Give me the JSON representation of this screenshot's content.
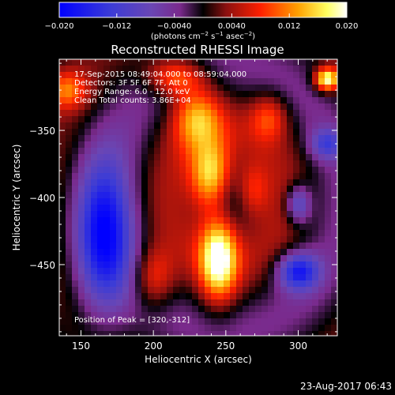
{
  "chart_data": {
    "type": "heatmap",
    "title": "Reconstructed RHESSI Image",
    "xlabel": "Heliocentric X (arcsec)",
    "ylabel": "Heliocentric Y (arcsec)",
    "xlim": [
      135,
      327
    ],
    "ylim": [
      -503,
      -297
    ],
    "x_ticks": [
      150,
      200,
      250,
      300
    ],
    "y_ticks": [
      -350,
      -400,
      -450
    ],
    "x_tick_labels": [
      "150",
      "200",
      "250",
      "300"
    ],
    "y_tick_labels": [
      "−350",
      "−400",
      "−450"
    ],
    "colorbar": {
      "range": [
        -0.02,
        0.02
      ],
      "ticks": [
        -0.02,
        -0.012,
        -0.004,
        0.004,
        0.012,
        0.02
      ],
      "tick_labels": [
        "−0.020",
        "−0.012",
        "−0.0040",
        "0.0040",
        "0.012",
        "0.020"
      ],
      "unit_label_parts": {
        "prefix": "(photons cm",
        "sup1": "−2",
        "mid1": " s",
        "sup2": "−1",
        "mid2": " asec",
        "sup3": "−2",
        "suffix": ")"
      },
      "colors": [
        "#0000ff",
        "#3c3cd6",
        "#6a46b4",
        "#7a2a8c",
        "#000000",
        "#8a1010",
        "#ff2000",
        "#ffa000",
        "#ffff60",
        "#ffffff"
      ]
    },
    "annotations": [
      "17-Sep-2015 08:49:04.000 to 08:59:04.000",
      "Detectors: 3F 5F 6F 7F, Att 0",
      "Energy Range: 6.0 - 12.0 keV",
      "Clean    Total counts: 3.86E+04"
    ],
    "peak_label": "Position of Peak = [320,-312]",
    "peak": [
      320,
      -312
    ],
    "sources": [
      {
        "x": 240,
        "y": -385,
        "amp": 0.017,
        "sx": 10,
        "sy": 18
      },
      {
        "x": 245,
        "y": -445,
        "amp": 0.019,
        "sx": 9,
        "sy": 22
      },
      {
        "x": 230,
        "y": -340,
        "amp": 0.012,
        "sx": 12,
        "sy": 16
      },
      {
        "x": 215,
        "y": -310,
        "amp": 0.012,
        "sx": 14,
        "sy": 10
      },
      {
        "x": 268,
        "y": -395,
        "amp": 0.008,
        "sx": 8,
        "sy": 14
      },
      {
        "x": 280,
        "y": -340,
        "amp": 0.008,
        "sx": 9,
        "sy": 12
      },
      {
        "x": 200,
        "y": -460,
        "amp": 0.009,
        "sx": 10,
        "sy": 16
      },
      {
        "x": 320,
        "y": -312,
        "amp": 0.02,
        "sx": 6,
        "sy": 6
      },
      {
        "x": 140,
        "y": -320,
        "amp": 0.01,
        "sx": 10,
        "sy": 10
      },
      {
        "x": 165,
        "y": -430,
        "amp": -0.018,
        "sx": 14,
        "sy": 40
      },
      {
        "x": 300,
        "y": -455,
        "amp": -0.016,
        "sx": 10,
        "sy": 10
      },
      {
        "x": 300,
        "y": -405,
        "amp": -0.012,
        "sx": 6,
        "sy": 10
      },
      {
        "x": 320,
        "y": -360,
        "amp": -0.01,
        "sx": 8,
        "sy": 8
      }
    ]
  },
  "footer": {
    "date": "23-Aug-2017 06:43"
  }
}
